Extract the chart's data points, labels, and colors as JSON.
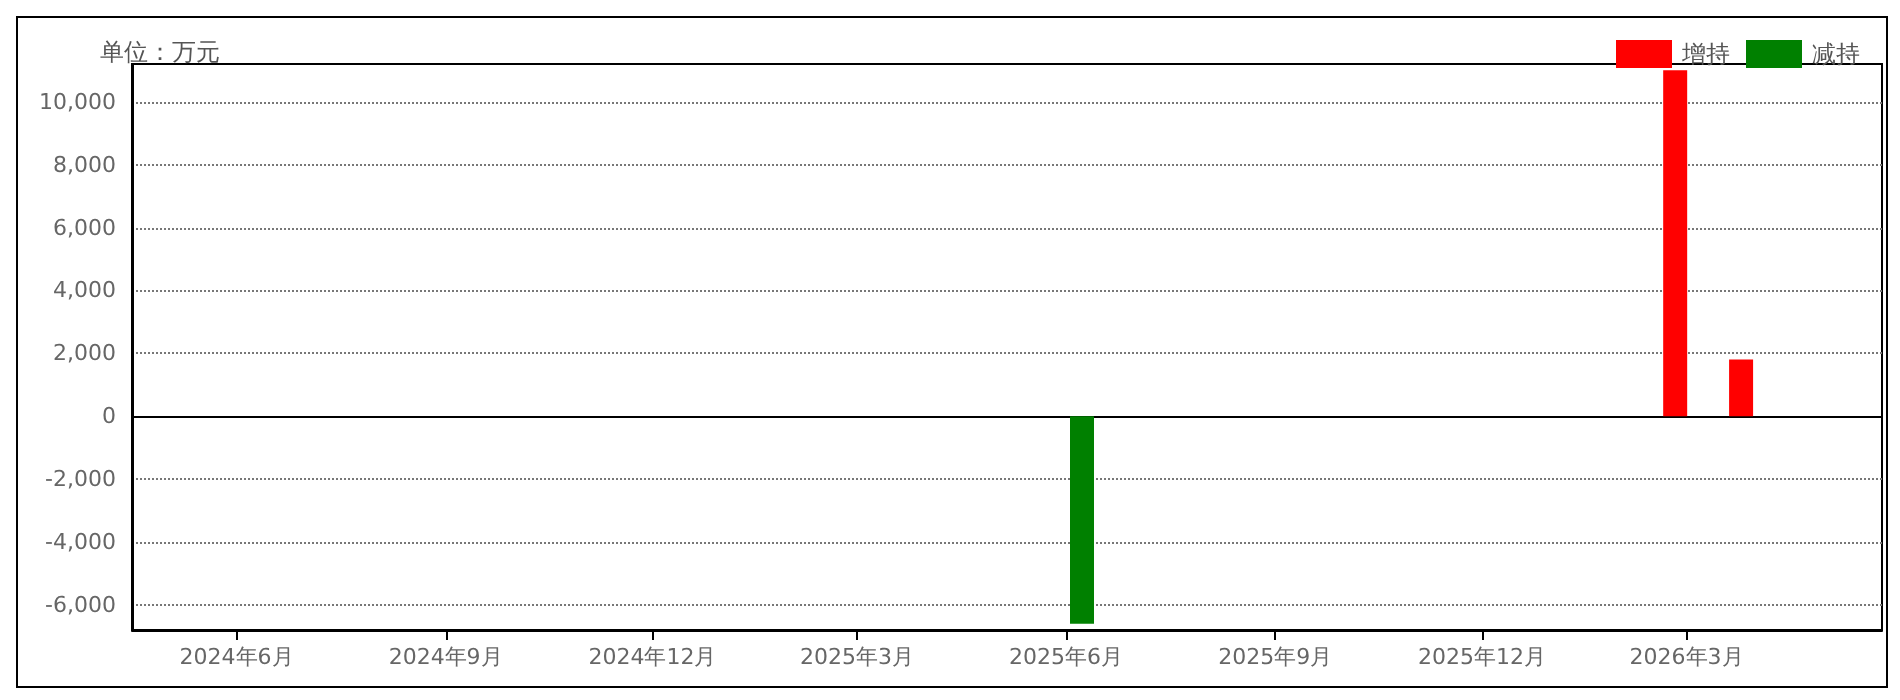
{
  "chart_data": {
    "type": "bar",
    "annotations": [
      "单位：万元"
    ],
    "xlim": [
      "2024-04-16",
      "2026-05-26"
    ],
    "xticks": [
      {
        "value": "2024-06",
        "label": "2024年6月"
      },
      {
        "value": "2024-09",
        "label": "2024年9月"
      },
      {
        "value": "2024-12",
        "label": "2024年12月"
      },
      {
        "value": "2025-03",
        "label": "2025年3月"
      },
      {
        "value": "2025-06",
        "label": "2025年6月"
      },
      {
        "value": "2025-09",
        "label": "2025年9月"
      },
      {
        "value": "2025-12",
        "label": "2025年12月"
      },
      {
        "value": "2026-03",
        "label": "2026年3月"
      }
    ],
    "ylim": [
      -6800,
      11200
    ],
    "yticks": [
      {
        "value": -6000,
        "label": "-6,000"
      },
      {
        "value": -4000,
        "label": "-4,000"
      },
      {
        "value": -2000,
        "label": "-2,000"
      },
      0,
      {
        "value": 2000,
        "label": "2,000"
      },
      {
        "value": 4000,
        "label": "4,000"
      },
      {
        "value": 6000,
        "label": "6,000"
      },
      {
        "value": 8000,
        "label": "8,000"
      },
      {
        "value": 10000,
        "label": "10,000"
      }
    ],
    "series": [
      {
        "name": "增持",
        "color": "#ff0000",
        "x": [
          "2026-02-24",
          "2026-03-25"
        ],
        "values": [
          11000,
          1800
        ]
      },
      {
        "name": "减持",
        "color": "#008000",
        "x": [
          "2025-06-08"
        ],
        "values": [
          -6600
        ]
      }
    ],
    "grid": "y",
    "legend": "top right"
  }
}
